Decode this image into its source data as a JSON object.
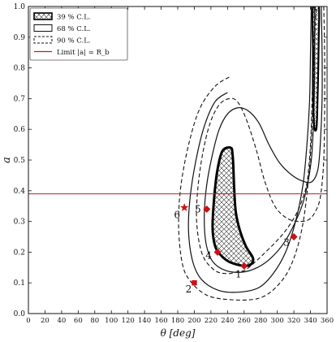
{
  "chart_data": {
    "type": "contour",
    "xlabel": "θ [deg]",
    "ylabel": "a",
    "xlim": [
      0,
      360
    ],
    "ylim": [
      0.0,
      1.0
    ],
    "xticks": [
      0,
      20,
      40,
      60,
      80,
      100,
      120,
      140,
      160,
      180,
      200,
      220,
      240,
      260,
      280,
      300,
      320,
      340,
      360
    ],
    "yticks": [
      0.0,
      0.1,
      0.2,
      0.3,
      0.4,
      0.5,
      0.6,
      0.7,
      0.8,
      0.9,
      1.0
    ],
    "legend_position": "top-left",
    "legend": [
      {
        "label": "39 % C.L.",
        "style": "hatched"
      },
      {
        "label": "68 % C.L.",
        "style": "solid"
      },
      {
        "label": "90 % C.L.",
        "style": "dashed"
      },
      {
        "label": "Limit |a| = R_b",
        "style": "red-line"
      }
    ],
    "limit_line": {
      "y": 0.39,
      "color": "#b22222"
    },
    "points": [
      {
        "label": "1",
        "x": 260,
        "y": 0.155,
        "marker": "diamond"
      },
      {
        "label": "2",
        "x": 200,
        "y": 0.1,
        "marker": "square"
      },
      {
        "label": "3",
        "x": 320,
        "y": 0.25,
        "marker": "diamond"
      },
      {
        "label": "4",
        "x": 228,
        "y": 0.2,
        "marker": "diamond"
      },
      {
        "label": "5",
        "x": 215,
        "y": 0.34,
        "marker": "diamond"
      },
      {
        "label": "6",
        "x": 188,
        "y": 0.345,
        "marker": "star"
      }
    ],
    "contours": {
      "cl90_main": [
        [
          242,
          0.77
        ],
        [
          225,
          0.74
        ],
        [
          207,
          0.67
        ],
        [
          194,
          0.56
        ],
        [
          184,
          0.42
        ],
        [
          181,
          0.29
        ],
        [
          185,
          0.17
        ],
        [
          194,
          0.11
        ],
        [
          215,
          0.06
        ],
        [
          245,
          0.045
        ],
        [
          278,
          0.05
        ],
        [
          300,
          0.09
        ],
        [
          317,
          0.16
        ],
        [
          330,
          0.28
        ],
        [
          338,
          0.45
        ],
        [
          342,
          0.62
        ],
        [
          344,
          0.8
        ],
        [
          346,
          0.95
        ],
        [
          348,
          1.0
        ]
      ],
      "cl90_inner": [
        [
          356,
          1.0
        ],
        [
          357,
          0.85
        ],
        [
          357,
          0.65
        ],
        [
          356,
          0.5
        ],
        [
          353,
          0.4
        ],
        [
          349,
          0.35
        ],
        [
          340,
          0.31
        ],
        [
          328,
          0.3
        ],
        [
          312,
          0.31
        ],
        [
          297,
          0.35
        ],
        [
          285,
          0.43
        ],
        [
          275,
          0.53
        ],
        [
          263,
          0.63
        ],
        [
          252,
          0.69
        ],
        [
          242,
          0.7
        ],
        [
          230,
          0.68
        ],
        [
          219,
          0.62
        ],
        [
          210,
          0.52
        ],
        [
          204,
          0.4
        ],
        [
          203,
          0.29
        ],
        [
          210,
          0.19
        ],
        [
          225,
          0.14
        ],
        [
          240,
          0.13
        ],
        [
          250,
          0.135
        ],
        [
          260,
          0.14
        ],
        [
          270,
          0.16
        ],
        [
          282,
          0.19
        ],
        [
          297,
          0.23
        ],
        [
          310,
          0.27
        ],
        [
          322,
          0.32
        ],
        [
          330,
          0.37
        ],
        [
          336,
          0.43
        ],
        [
          340,
          0.55
        ],
        [
          342,
          0.7
        ],
        [
          344,
          0.85
        ],
        [
          345,
          0.95
        ],
        [
          346,
          1.0
        ]
      ],
      "cl68_main": [
        [
          240,
          0.72
        ],
        [
          225,
          0.69
        ],
        [
          212,
          0.61
        ],
        [
          202,
          0.5
        ],
        [
          195,
          0.38
        ],
        [
          193,
          0.27
        ],
        [
          198,
          0.17
        ],
        [
          209,
          0.11
        ],
        [
          230,
          0.075
        ],
        [
          255,
          0.07
        ],
        [
          278,
          0.085
        ],
        [
          295,
          0.13
        ],
        [
          310,
          0.2
        ],
        [
          322,
          0.3
        ],
        [
          331,
          0.42
        ],
        [
          336,
          0.56
        ],
        [
          339,
          0.7
        ],
        [
          340,
          0.85
        ],
        [
          341,
          1.0
        ]
      ],
      "cl68_inner": [
        [
          353,
          1.0
        ],
        [
          354,
          0.85
        ],
        [
          354,
          0.7
        ],
        [
          352,
          0.56
        ],
        [
          349,
          0.47
        ],
        [
          342,
          0.43
        ],
        [
          332,
          0.43
        ],
        [
          318,
          0.45
        ],
        [
          303,
          0.49
        ],
        [
          290,
          0.55
        ],
        [
          278,
          0.62
        ],
        [
          265,
          0.66
        ],
        [
          252,
          0.67
        ],
        [
          240,
          0.65
        ],
        [
          230,
          0.6
        ],
        [
          222,
          0.52
        ],
        [
          215,
          0.42
        ],
        [
          212,
          0.32
        ],
        [
          214,
          0.23
        ],
        [
          222,
          0.17
        ],
        [
          238,
          0.14
        ],
        [
          258,
          0.135
        ],
        [
          276,
          0.15
        ],
        [
          292,
          0.18
        ],
        [
          308,
          0.23
        ],
        [
          322,
          0.3
        ],
        [
          333,
          0.38
        ],
        [
          341,
          0.5
        ],
        [
          344,
          0.65
        ],
        [
          345,
          0.8
        ],
        [
          345,
          1.0
        ]
      ],
      "cl39_main": [
        [
          244,
          0.54
        ],
        [
          234,
          0.53
        ],
        [
          228,
          0.47
        ],
        [
          224,
          0.38
        ],
        [
          222,
          0.28
        ],
        [
          225,
          0.22
        ],
        [
          232,
          0.19
        ],
        [
          241,
          0.17
        ],
        [
          251,
          0.16
        ],
        [
          261,
          0.155
        ],
        [
          268,
          0.16
        ],
        [
          271,
          0.175
        ],
        [
          269,
          0.19
        ],
        [
          262,
          0.22
        ],
        [
          255,
          0.27
        ],
        [
          250,
          0.33
        ],
        [
          248,
          0.41
        ],
        [
          247,
          0.48
        ],
        [
          246,
          0.52
        ]
      ],
      "cl39_top": [
        [
          343,
          1.0
        ],
        [
          343,
          0.85
        ],
        [
          343,
          0.72
        ],
        [
          344,
          0.63
        ],
        [
          345,
          0.6
        ],
        [
          347,
          0.6
        ],
        [
          348,
          0.64
        ],
        [
          349,
          0.75
        ],
        [
          350,
          0.9
        ],
        [
          350,
          1.0
        ]
      ]
    }
  }
}
